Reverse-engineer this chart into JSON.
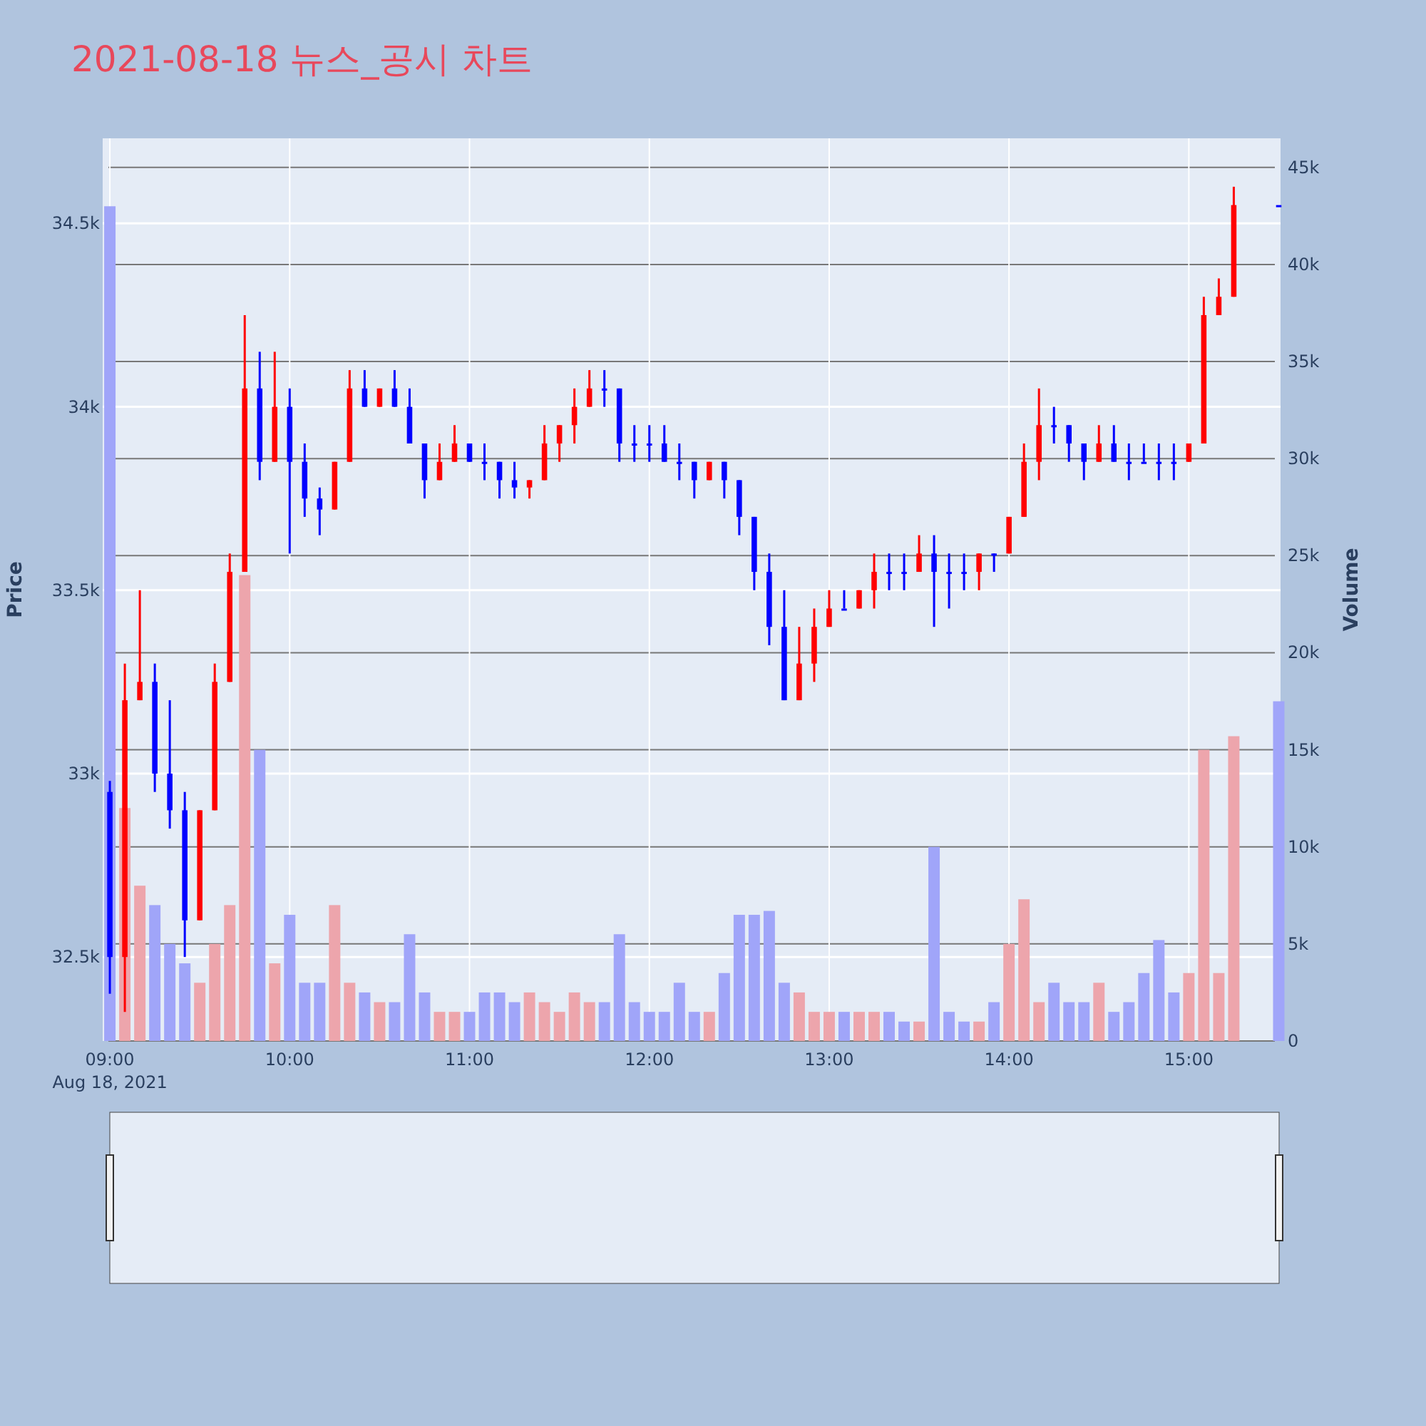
{
  "chart_data": [
    {
      "type": "candlestick",
      "title": "2021-08-18 뉴스_공시 차트",
      "ylabel": "Price",
      "y2label": "Volume",
      "grid": true,
      "xlim": [
        8.96,
        15.51
      ],
      "xticks": [
        {
          "value": 9,
          "label": "09:00"
        },
        {
          "value": 10,
          "label": "10:00"
        },
        {
          "value": 11,
          "label": "11:00"
        },
        {
          "value": 12,
          "label": "12:00"
        },
        {
          "value": 13,
          "label": "13:00"
        },
        {
          "value": 14,
          "label": "14:00"
        },
        {
          "value": 15,
          "label": "15:00"
        }
      ],
      "ylim": [
        32271,
        34732
      ],
      "yticks": [
        {
          "value": 32500,
          "label": "32.5k"
        },
        {
          "value": 33000,
          "label": "33k"
        },
        {
          "value": 33500,
          "label": "33.5k"
        },
        {
          "value": 34000,
          "label": "34k"
        },
        {
          "value": 34500,
          "label": "34.5k"
        }
      ],
      "y2lim": [
        0,
        46500
      ],
      "y2ticks": [
        0,
        {
          "value": 5000,
          "label": "5k"
        },
        {
          "value": 10000,
          "label": "10k"
        },
        {
          "value": 15000,
          "label": "15k"
        },
        {
          "value": 20000,
          "label": "20k"
        },
        {
          "value": 25000,
          "label": "25k"
        },
        {
          "value": 30000,
          "label": "30k"
        },
        {
          "value": 35000,
          "label": "35k"
        },
        {
          "value": 40000,
          "label": "40k"
        },
        {
          "value": 45000,
          "label": "45k"
        }
      ],
      "annotations": [
        "Aug 18, 2021"
      ],
      "x": [
        9,
        9.0833,
        9.1667,
        9.25,
        9.3333,
        9.4167,
        9.5,
        9.5833,
        9.6667,
        9.75,
        9.8333,
        9.9167,
        10,
        10.0833,
        10.1667,
        10.25,
        10.3333,
        10.4167,
        10.5,
        10.5833,
        10.6667,
        10.75,
        10.8333,
        10.9167,
        11,
        11.0833,
        11.1667,
        11.25,
        11.3333,
        11.4167,
        11.5,
        11.5833,
        11.6667,
        11.75,
        11.8333,
        11.9167,
        12,
        12.0833,
        12.1667,
        12.25,
        12.3333,
        12.4167,
        12.5,
        12.5833,
        12.6667,
        12.75,
        12.8333,
        12.9167,
        13,
        13.0833,
        13.1667,
        13.25,
        13.3333,
        13.4167,
        13.5,
        13.5833,
        13.6667,
        13.75,
        13.8333,
        13.9167,
        14,
        14.0833,
        14.1667,
        14.25,
        14.3333,
        14.4167,
        14.5,
        14.5833,
        14.6667,
        14.75,
        14.8333,
        14.9167,
        15,
        15.0833,
        15.1667,
        15.25,
        15.5
      ],
      "series": [
        {
          "type": "candlestick",
          "ohlc": [
            [
              32950,
              32980,
              32400,
              32500
            ],
            [
              32500,
              33300,
              32350,
              33200
            ],
            [
              33200,
              33500,
              33200,
              33250
            ],
            [
              33250,
              33300,
              32950,
              33000
            ],
            [
              33000,
              33200,
              32850,
              32900
            ],
            [
              32900,
              32950,
              32500,
              32600
            ],
            [
              32600,
              32900,
              32600,
              32900
            ],
            [
              32900,
              33300,
              32900,
              33250
            ],
            [
              33250,
              33600,
              33250,
              33550
            ],
            [
              33550,
              34250,
              33550,
              34050
            ],
            [
              34050,
              34150,
              33800,
              33850
            ],
            [
              33850,
              34150,
              33850,
              34000
            ],
            [
              34000,
              34050,
              33600,
              33850
            ],
            [
              33850,
              33900,
              33700,
              33750
            ],
            [
              33750,
              33780,
              33650,
              33720
            ],
            [
              33720,
              33850,
              33720,
              33850
            ],
            [
              33850,
              34100,
              33850,
              34050
            ],
            [
              34050,
              34100,
              34000,
              34000
            ],
            [
              34000,
              34050,
              34000,
              34050
            ],
            [
              34050,
              34100,
              34000,
              34000
            ],
            [
              34000,
              34050,
              33900,
              33900
            ],
            [
              33900,
              33900,
              33750,
              33800
            ],
            [
              33800,
              33900,
              33800,
              33850
            ],
            [
              33850,
              33950,
              33850,
              33900
            ],
            [
              33900,
              33900,
              33850,
              33850
            ],
            [
              33850,
              33900,
              33800,
              33850
            ],
            [
              33850,
              33850,
              33750,
              33800
            ],
            [
              33800,
              33850,
              33750,
              33780
            ],
            [
              33780,
              33800,
              33750,
              33800
            ],
            [
              33800,
              33950,
              33800,
              33900
            ],
            [
              33900,
              33950,
              33850,
              33950
            ],
            [
              33950,
              34050,
              33900,
              34000
            ],
            [
              34000,
              34100,
              34000,
              34050
            ],
            [
              34050,
              34100,
              34000,
              34050
            ],
            [
              34050,
              34050,
              33850,
              33900
            ],
            [
              33900,
              33950,
              33850,
              33900
            ],
            [
              33900,
              33950,
              33850,
              33900
            ],
            [
              33900,
              33950,
              33850,
              33850
            ],
            [
              33850,
              33900,
              33800,
              33850
            ],
            [
              33850,
              33850,
              33750,
              33800
            ],
            [
              33800,
              33850,
              33800,
              33850
            ],
            [
              33850,
              33850,
              33750,
              33800
            ],
            [
              33800,
              33800,
              33650,
              33700
            ],
            [
              33700,
              33700,
              33500,
              33550
            ],
            [
              33550,
              33600,
              33350,
              33400
            ],
            [
              33400,
              33500,
              33200,
              33200
            ],
            [
              33200,
              33400,
              33200,
              33300
            ],
            [
              33300,
              33450,
              33250,
              33400
            ],
            [
              33400,
              33500,
              33400,
              33450
            ],
            [
              33450,
              33500,
              33450,
              33450
            ],
            [
              33450,
              33500,
              33450,
              33500
            ],
            [
              33500,
              33600,
              33450,
              33550
            ],
            [
              33550,
              33600,
              33500,
              33550
            ],
            [
              33550,
              33600,
              33500,
              33550
            ],
            [
              33550,
              33650,
              33550,
              33600
            ],
            [
              33600,
              33650,
              33400,
              33550
            ],
            [
              33550,
              33600,
              33450,
              33550
            ],
            [
              33550,
              33600,
              33500,
              33550
            ],
            [
              33550,
              33600,
              33500,
              33600
            ],
            [
              33600,
              33600,
              33550,
              33600
            ],
            [
              33600,
              33700,
              33600,
              33700
            ],
            [
              33700,
              33900,
              33700,
              33850
            ],
            [
              33850,
              34050,
              33800,
              33950
            ],
            [
              33950,
              34000,
              33900,
              33950
            ],
            [
              33950,
              33950,
              33850,
              33900
            ],
            [
              33900,
              33900,
              33800,
              33850
            ],
            [
              33850,
              33950,
              33850,
              33900
            ],
            [
              33900,
              33950,
              33850,
              33850
            ],
            [
              33850,
              33900,
              33800,
              33850
            ],
            [
              33850,
              33900,
              33850,
              33850
            ],
            [
              33850,
              33900,
              33800,
              33850
            ],
            [
              33850,
              33900,
              33800,
              33850
            ],
            [
              33850,
              33900,
              33850,
              33900
            ],
            [
              33900,
              34300,
              33900,
              34250
            ],
            [
              34250,
              34350,
              34250,
              34300
            ],
            [
              34300,
              34600,
              34300,
              34550
            ],
            [
              34550,
              34550,
              34550,
              34550
            ]
          ],
          "colors": [
            "#0000ff",
            "#ff0000",
            "#ff0000",
            "#0000ff",
            "#0000ff",
            "#0000ff",
            "#ff0000",
            "#ff0000",
            "#ff0000",
            "#ff0000",
            "#0000ff",
            "#ff0000",
            "#0000ff",
            "#0000ff",
            "#0000ff",
            "#ff0000",
            "#ff0000",
            "#0000ff",
            "#ff0000",
            "#0000ff",
            "#0000ff",
            "#0000ff",
            "#ff0000",
            "#ff0000",
            "#0000ff",
            "#0000ff",
            "#0000ff",
            "#0000ff",
            "#ff0000",
            "#ff0000",
            "#ff0000",
            "#ff0000",
            "#ff0000",
            "#0000ff",
            "#0000ff",
            "#0000ff",
            "#0000ff",
            "#0000ff",
            "#0000ff",
            "#0000ff",
            "#ff0000",
            "#0000ff",
            "#0000ff",
            "#0000ff",
            "#0000ff",
            "#0000ff",
            "#ff0000",
            "#ff0000",
            "#ff0000",
            "#0000ff",
            "#ff0000",
            "#ff0000",
            "#0000ff",
            "#0000ff",
            "#ff0000",
            "#0000ff",
            "#0000ff",
            "#0000ff",
            "#ff0000",
            "#0000ff",
            "#ff0000",
            "#ff0000",
            "#ff0000",
            "#0000ff",
            "#0000ff",
            "#0000ff",
            "#ff0000",
            "#0000ff",
            "#0000ff",
            "#0000ff",
            "#0000ff",
            "#0000ff",
            "#ff0000",
            "#ff0000",
            "#ff0000",
            "#ff0000",
            "#0000ff"
          ]
        },
        {
          "type": "bar",
          "axis": "y2",
          "values": [
            43000,
            12000,
            8000,
            7000,
            5000,
            4000,
            3000,
            5000,
            7000,
            24000,
            15000,
            4000,
            6500,
            3000,
            3000,
            7000,
            3000,
            2500,
            2000,
            2000,
            5500,
            2500,
            1500,
            1500,
            1500,
            2500,
            2500,
            2000,
            2500,
            2000,
            1500,
            2500,
            2000,
            2000,
            5500,
            2000,
            1500,
            1500,
            3000,
            1500,
            1500,
            3500,
            6500,
            6500,
            6700,
            3000,
            2500,
            1500,
            1500,
            1500,
            1500,
            1500,
            1500,
            1000,
            1000,
            10000,
            1500,
            1000,
            1000,
            2000,
            5000,
            7300,
            2000,
            3000,
            2000,
            2000,
            3000,
            1500,
            2000,
            3500,
            5200,
            2500,
            3500,
            15000,
            3500,
            15700,
            17500
          ],
          "colors": [
            "#a0a5f9",
            "#eda5ac",
            "#eda5ac",
            "#a0a5f9",
            "#a0a5f9",
            "#a0a5f9",
            "#eda5ac",
            "#eda5ac",
            "#eda5ac",
            "#eda5ac",
            "#a0a5f9",
            "#eda5ac",
            "#a0a5f9",
            "#a0a5f9",
            "#a0a5f9",
            "#eda5ac",
            "#eda5ac",
            "#a0a5f9",
            "#eda5ac",
            "#a0a5f9",
            "#a0a5f9",
            "#a0a5f9",
            "#eda5ac",
            "#eda5ac",
            "#a0a5f9",
            "#a0a5f9",
            "#a0a5f9",
            "#a0a5f9",
            "#eda5ac",
            "#eda5ac",
            "#eda5ac",
            "#eda5ac",
            "#eda5ac",
            "#a0a5f9",
            "#a0a5f9",
            "#a0a5f9",
            "#a0a5f9",
            "#a0a5f9",
            "#a0a5f9",
            "#a0a5f9",
            "#eda5ac",
            "#a0a5f9",
            "#a0a5f9",
            "#a0a5f9",
            "#a0a5f9",
            "#a0a5f9",
            "#eda5ac",
            "#eda5ac",
            "#eda5ac",
            "#a0a5f9",
            "#eda5ac",
            "#eda5ac",
            "#a0a5f9",
            "#a0a5f9",
            "#eda5ac",
            "#a0a5f9",
            "#a0a5f9",
            "#a0a5f9",
            "#eda5ac",
            "#a0a5f9",
            "#eda5ac",
            "#eda5ac",
            "#eda5ac",
            "#a0a5f9",
            "#a0a5f9",
            "#a0a5f9",
            "#eda5ac",
            "#a0a5f9",
            "#a0a5f9",
            "#a0a5f9",
            "#a0a5f9",
            "#a0a5f9",
            "#eda5ac",
            "#eda5ac",
            "#eda5ac",
            "#eda5ac",
            "#a0a5f9"
          ]
        }
      ]
    }
  ]
}
